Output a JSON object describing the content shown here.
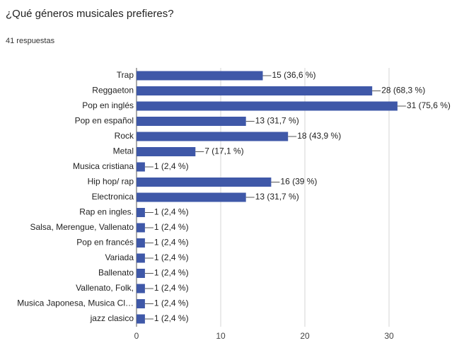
{
  "chart_data": {
    "type": "bar",
    "orientation": "horizontal",
    "title": "¿Qué géneros musicales prefieres?",
    "subtitle": "41 respuestas",
    "categories": [
      "Trap",
      "Reggaeton",
      "Pop en inglés",
      "Pop en español",
      "Rock",
      "Metal",
      "Musica cristiana",
      "Hip hop/ rap",
      "Electronica",
      "Rap en ingles.",
      "Salsa, Merengue, Vallenato",
      "Pop en francés",
      "Variada",
      "Ballenato",
      "Vallenato, Folk,",
      "Musica Japonesa, Musica Cl…",
      "jazz clasico"
    ],
    "values": [
      15,
      28,
      31,
      13,
      18,
      7,
      1,
      16,
      13,
      1,
      1,
      1,
      1,
      1,
      1,
      1,
      1
    ],
    "value_labels": [
      "15 (36,6 %)",
      "28 (68,3 %)",
      "31 (75,6 %)",
      "13 (31,7 %)",
      "18 (43,9 %)",
      "7 (17,1 %)",
      "1 (2,4 %)",
      "16 (39 %)",
      "13 (31,7 %)",
      "1 (2,4 %)",
      "1 (2,4 %)",
      "1 (2,4 %)",
      "1 (2,4 %)",
      "1 (2,4 %)",
      "1 (2,4 %)",
      "1 (2,4 %)",
      "1 (2,4 %)"
    ],
    "color": "#3f58a8",
    "xlim": [
      0,
      35
    ],
    "xticks": [
      0,
      10,
      20,
      30
    ],
    "grid": true
  }
}
